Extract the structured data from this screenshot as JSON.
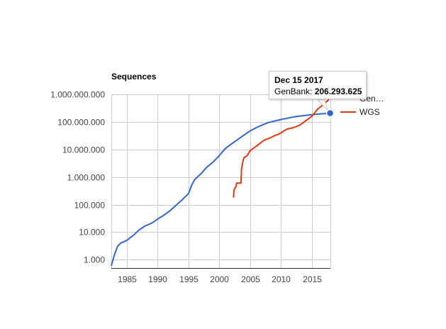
{
  "chart_data": {
    "type": "line",
    "title": "Sequences",
    "y_scale": "log",
    "ylim": [
      500,
      1000000000
    ],
    "xlim": [
      1982.5,
      2018
    ],
    "y_ticks": [
      {
        "value": 1000,
        "label": "1.000"
      },
      {
        "value": 10000,
        "label": "10.000"
      },
      {
        "value": 100000,
        "label": "100.000"
      },
      {
        "value": 1000000,
        "label": "1.000.000"
      },
      {
        "value": 10000000,
        "label": "10.000.000"
      },
      {
        "value": 100000000,
        "label": "100.000.000"
      },
      {
        "value": 1000000000,
        "label": "1.000.000.000"
      }
    ],
    "x_ticks": [
      {
        "value": 1985,
        "label": "1985"
      },
      {
        "value": 1990,
        "label": "1990"
      },
      {
        "value": 1995,
        "label": "1995"
      },
      {
        "value": 2000,
        "label": "2000"
      },
      {
        "value": 2005,
        "label": "2005"
      },
      {
        "value": 2010,
        "label": "2010"
      },
      {
        "value": 2015,
        "label": "2015"
      }
    ],
    "grid": true,
    "legend_position": "right",
    "series": [
      {
        "name": "GenBank",
        "legend_label": "GenBank",
        "color": "#3366cc",
        "points": [
          [
            1982.5,
            600
          ],
          [
            1983,
            1500
          ],
          [
            1983.5,
            3000
          ],
          [
            1984,
            4000
          ],
          [
            1985,
            5000
          ],
          [
            1986,
            7500
          ],
          [
            1987,
            12000
          ],
          [
            1988,
            17000
          ],
          [
            1989,
            21000
          ],
          [
            1990,
            30000
          ],
          [
            1991,
            41000
          ],
          [
            1992,
            60000
          ],
          [
            1993,
            95000
          ],
          [
            1994,
            150000
          ],
          [
            1995,
            250000
          ],
          [
            1995.5,
            500000
          ],
          [
            1996,
            800000
          ],
          [
            1997,
            1300000
          ],
          [
            1998,
            2300000
          ],
          [
            1999,
            3500000
          ],
          [
            2000,
            6000000
          ],
          [
            2001,
            11000000
          ],
          [
            2002,
            16000000
          ],
          [
            2003,
            23000000
          ],
          [
            2004,
            33000000
          ],
          [
            2005,
            47000000
          ],
          [
            2006,
            62000000
          ],
          [
            2007,
            78000000
          ],
          [
            2008,
            95000000
          ],
          [
            2009,
            108000000
          ],
          [
            2010,
            122000000
          ],
          [
            2011,
            135000000
          ],
          [
            2012,
            150000000
          ],
          [
            2013,
            162000000
          ],
          [
            2014,
            172000000
          ],
          [
            2015,
            182000000
          ],
          [
            2016,
            192000000
          ],
          [
            2017,
            200000000
          ],
          [
            2017.95,
            206293625
          ]
        ]
      },
      {
        "name": "WGS",
        "legend_label": "WGS",
        "color": "#dc3912",
        "points": [
          [
            2002.3,
            180000
          ],
          [
            2002.4,
            350000
          ],
          [
            2002.7,
            450000
          ],
          [
            2002.8,
            600000
          ],
          [
            2003.5,
            600000
          ],
          [
            2003.6,
            2000000
          ],
          [
            2003.8,
            3500000
          ],
          [
            2004,
            5000000
          ],
          [
            2004.5,
            6000000
          ],
          [
            2005,
            9000000
          ],
          [
            2005.5,
            11000000
          ],
          [
            2006,
            13000000
          ],
          [
            2006.5,
            16000000
          ],
          [
            2007,
            20000000
          ],
          [
            2007.5,
            23000000
          ],
          [
            2008,
            25000000
          ],
          [
            2008.5,
            28000000
          ],
          [
            2009,
            32000000
          ],
          [
            2009.5,
            35000000
          ],
          [
            2010,
            40000000
          ],
          [
            2010.5,
            48000000
          ],
          [
            2011,
            55000000
          ],
          [
            2012,
            62000000
          ],
          [
            2013,
            75000000
          ],
          [
            2014,
            110000000
          ],
          [
            2015,
            160000000
          ],
          [
            2016,
            300000000
          ],
          [
            2017,
            450000000
          ],
          [
            2017.6,
            600000000
          ],
          [
            2018,
            900000000
          ]
        ]
      }
    ],
    "tooltip": {
      "date": "Dec 15 2017",
      "series_label": "GenBank: ",
      "value": "206.293.625",
      "x": 2017.95,
      "y": 206293625
    }
  }
}
